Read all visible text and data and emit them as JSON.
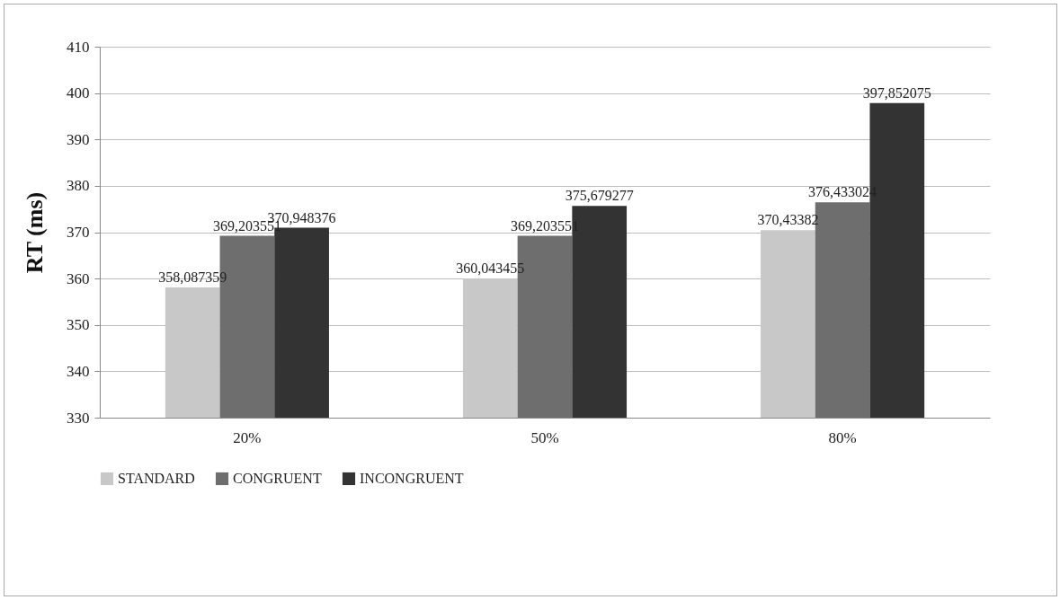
{
  "chart_data": {
    "type": "bar",
    "ylabel": "RT (ms)",
    "categories": [
      "20%",
      "50%",
      "80%"
    ],
    "series": [
      {
        "name": "STANDARD",
        "color": "#c8c8c8",
        "values": [
          358.087359,
          360.043455,
          370.43382
        ],
        "value_labels": [
          "358,087359",
          "360,043455",
          "370,43382"
        ]
      },
      {
        "name": "CONGRUENT",
        "color": "#6e6e6e",
        "values": [
          369.203551,
          369.203551,
          376.433024
        ],
        "value_labels": [
          "369,203551",
          "369,203551",
          "376,433024"
        ]
      },
      {
        "name": "INCONGRUENT",
        "color": "#333333",
        "values": [
          370.948376,
          375.679277,
          397.852075
        ],
        "value_labels": [
          "370,948376",
          "375,679277",
          "397,852075"
        ]
      }
    ],
    "ylim": [
      330,
      410
    ],
    "yticks": [
      330,
      340,
      350,
      360,
      370,
      380,
      390,
      400,
      410
    ],
    "grid": "y",
    "legend": "bottom"
  }
}
